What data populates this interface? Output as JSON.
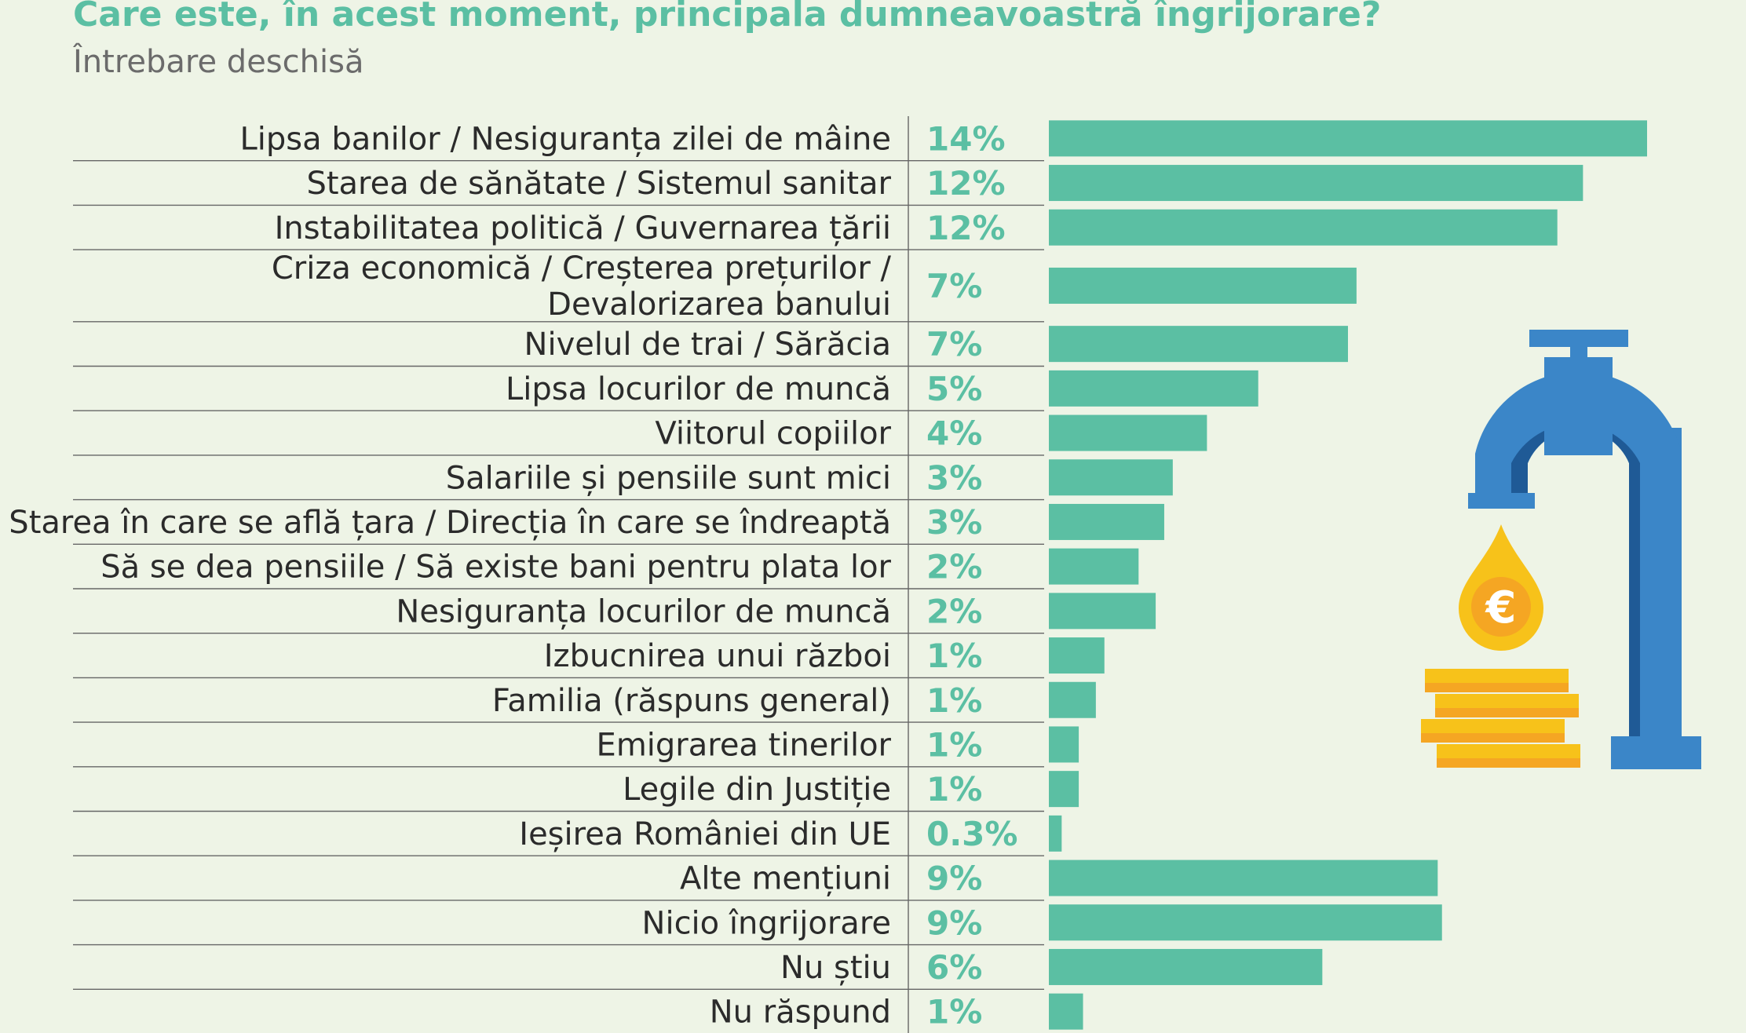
{
  "chart_data": {
    "type": "bar",
    "orientation": "horizontal",
    "title": "Care este, în acest moment, principala dumneavoastră îngrijorare?",
    "subtitle": "Întrebare deschisă",
    "categories": [
      [
        "Lipsa banilor / Nesiguranța zilei de mâine"
      ],
      [
        "Starea de sănătate / Sistemul sanitar"
      ],
      [
        "Instabilitatea politică / Guvernarea țării"
      ],
      [
        "Criza economică / Creșterea prețurilor /",
        "Devalorizarea banului"
      ],
      [
        "Nivelul de trai / Sărăcia"
      ],
      [
        "Lipsa locurilor de muncă"
      ],
      [
        "Viitorul copiilor"
      ],
      [
        "Salariile și pensiile sunt mici"
      ],
      [
        "Starea în care se află țara / Direcția în care se îndreaptă"
      ],
      [
        "Să se dea pensiile / Să existe bani pentru plata lor"
      ],
      [
        "Nesiguranța locurilor de muncă"
      ],
      [
        "Izbucnirea unui război"
      ],
      [
        "Familia (răspuns general)"
      ],
      [
        "Emigrarea tinerilor"
      ],
      [
        "Legile din Justiție"
      ],
      [
        "Ieșirea României din UE"
      ],
      [
        "Alte mențiuni"
      ],
      [
        "Nicio îngrijorare"
      ],
      [
        "Nu știu"
      ],
      [
        "Nu răspund"
      ]
    ],
    "value_labels": [
      "14%",
      "12%",
      "12%",
      "7%",
      "7%",
      "5%",
      "4%",
      "3%",
      "3%",
      "2%",
      "2%",
      "1%",
      "1%",
      "1%",
      "1%",
      "0.3%",
      "9%",
      "9%",
      "6%",
      "1%"
    ],
    "values": [
      14,
      12.5,
      11.9,
      7.2,
      7.0,
      4.9,
      3.7,
      2.9,
      2.7,
      2.1,
      2.5,
      1.3,
      1.1,
      0.7,
      0.7,
      0.3,
      9.1,
      9.2,
      6.4,
      0.8
    ],
    "xlim": [
      0,
      14
    ],
    "bar_color": "#5bbfa3",
    "grid": false,
    "legend": "none"
  },
  "illustration": {
    "name": "water-tap-euro-coins-icon",
    "colors": {
      "tap": "#3b86c8",
      "tap_dark": "#1f5a96",
      "drop": "#f7c21a",
      "coin": "#f7c21a",
      "coin_dark": "#f5a623"
    },
    "drop_symbol": "€"
  }
}
